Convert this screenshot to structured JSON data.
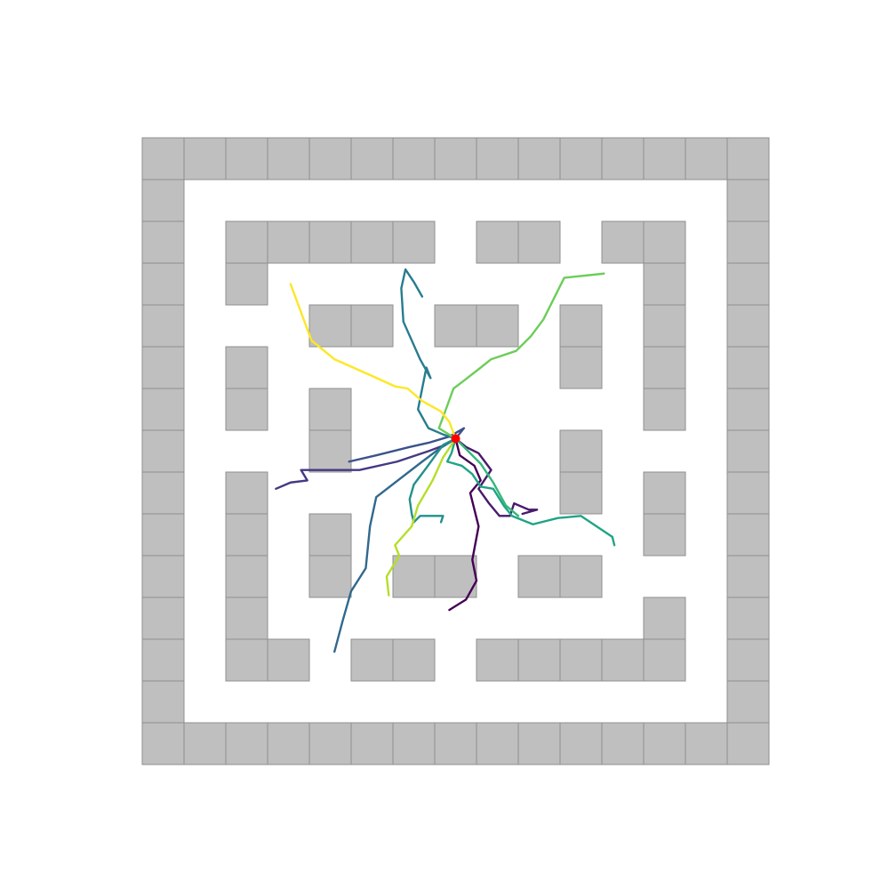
{
  "maze": {
    "cols": 15,
    "rows": 15,
    "wall_color": "#bfbfbf",
    "walls": [
      [
        0,
        0
      ],
      [
        1,
        0
      ],
      [
        2,
        0
      ],
      [
        3,
        0
      ],
      [
        4,
        0
      ],
      [
        5,
        0
      ],
      [
        6,
        0
      ],
      [
        7,
        0
      ],
      [
        8,
        0
      ],
      [
        9,
        0
      ],
      [
        10,
        0
      ],
      [
        11,
        0
      ],
      [
        12,
        0
      ],
      [
        13,
        0
      ],
      [
        14,
        0
      ],
      [
        0,
        14
      ],
      [
        1,
        14
      ],
      [
        2,
        14
      ],
      [
        3,
        14
      ],
      [
        4,
        14
      ],
      [
        5,
        14
      ],
      [
        6,
        14
      ],
      [
        7,
        14
      ],
      [
        8,
        14
      ],
      [
        9,
        14
      ],
      [
        10,
        14
      ],
      [
        11,
        14
      ],
      [
        12,
        14
      ],
      [
        13,
        14
      ],
      [
        14,
        14
      ],
      [
        0,
        1
      ],
      [
        0,
        2
      ],
      [
        0,
        3
      ],
      [
        0,
        4
      ],
      [
        0,
        5
      ],
      [
        0,
        6
      ],
      [
        0,
        7
      ],
      [
        0,
        8
      ],
      [
        0,
        9
      ],
      [
        0,
        10
      ],
      [
        0,
        11
      ],
      [
        0,
        12
      ],
      [
        0,
        13
      ],
      [
        14,
        1
      ],
      [
        14,
        2
      ],
      [
        14,
        3
      ],
      [
        14,
        4
      ],
      [
        14,
        5
      ],
      [
        14,
        6
      ],
      [
        14,
        7
      ],
      [
        14,
        8
      ],
      [
        14,
        9
      ],
      [
        14,
        10
      ],
      [
        14,
        11
      ],
      [
        14,
        12
      ],
      [
        14,
        13
      ],
      [
        2,
        2
      ],
      [
        3,
        2
      ],
      [
        4,
        2
      ],
      [
        5,
        2
      ],
      [
        6,
        2
      ],
      [
        8,
        2
      ],
      [
        9,
        2
      ],
      [
        11,
        2
      ],
      [
        12,
        2
      ],
      [
        2,
        3
      ],
      [
        12,
        3
      ],
      [
        4,
        4
      ],
      [
        5,
        4
      ],
      [
        7,
        4
      ],
      [
        8,
        4
      ],
      [
        10,
        4
      ],
      [
        12,
        4
      ],
      [
        2,
        5
      ],
      [
        10,
        5
      ],
      [
        12,
        5
      ],
      [
        2,
        6
      ],
      [
        4,
        6
      ],
      [
        12,
        6
      ],
      [
        4,
        7
      ],
      [
        10,
        7
      ],
      [
        2,
        8
      ],
      [
        10,
        8
      ],
      [
        12,
        8
      ],
      [
        2,
        9
      ],
      [
        4,
        9
      ],
      [
        12,
        9
      ],
      [
        2,
        10
      ],
      [
        4,
        10
      ],
      [
        6,
        10
      ],
      [
        7,
        10
      ],
      [
        9,
        10
      ],
      [
        10,
        10
      ],
      [
        2,
        11
      ],
      [
        12,
        11
      ],
      [
        2,
        12
      ],
      [
        3,
        12
      ],
      [
        5,
        12
      ],
      [
        6,
        12
      ],
      [
        8,
        12
      ],
      [
        9,
        12
      ],
      [
        10,
        12
      ],
      [
        11,
        12
      ],
      [
        12,
        12
      ]
    ]
  },
  "start": {
    "cell": [
      7.5,
      7.2
    ],
    "color": "#ff0000"
  },
  "trajectories": [
    {
      "color": "#440154",
      "points": [
        [
          7.5,
          7.2
        ],
        [
          7.6,
          7.6
        ],
        [
          7.95,
          7.85
        ],
        [
          8.1,
          8.2
        ],
        [
          7.85,
          8.5
        ],
        [
          8.05,
          9.3
        ],
        [
          7.9,
          10.1
        ],
        [
          8.0,
          10.6
        ],
        [
          7.75,
          11.05
        ],
        [
          7.35,
          11.3
        ]
      ]
    },
    {
      "color": "#481a6c",
      "points": [
        [
          7.5,
          7.2
        ],
        [
          7.75,
          7.4
        ],
        [
          8.05,
          7.55
        ],
        [
          8.35,
          7.95
        ],
        [
          8.05,
          8.4
        ],
        [
          8.3,
          8.75
        ],
        [
          8.55,
          9.05
        ],
        [
          8.8,
          9.05
        ],
        [
          8.9,
          8.75
        ],
        [
          9.25,
          8.9
        ],
        [
          9.45,
          8.9
        ],
        [
          9.1,
          9.0
        ]
      ]
    },
    {
      "color": "#443983",
      "points": [
        [
          7.5,
          7.2
        ],
        [
          7.25,
          7.35
        ],
        [
          6.85,
          7.5
        ],
        [
          6.1,
          7.75
        ],
        [
          5.2,
          7.95
        ],
        [
          3.8,
          7.95
        ],
        [
          3.95,
          8.2
        ],
        [
          3.55,
          8.25
        ],
        [
          3.2,
          8.4
        ]
      ]
    },
    {
      "color": "#3b528b",
      "points": [
        [
          7.5,
          7.2
        ],
        [
          7.7,
          6.95
        ],
        [
          7.35,
          7.15
        ],
        [
          6.85,
          7.3
        ],
        [
          6.4,
          7.4
        ],
        [
          5.6,
          7.6
        ],
        [
          4.95,
          7.75
        ]
      ]
    },
    {
      "color": "#31688e",
      "points": [
        [
          7.5,
          7.2
        ],
        [
          7.1,
          7.45
        ],
        [
          6.7,
          7.75
        ],
        [
          5.6,
          8.6
        ],
        [
          5.45,
          9.3
        ],
        [
          5.35,
          10.3
        ],
        [
          5.0,
          10.85
        ],
        [
          4.8,
          11.55
        ],
        [
          4.6,
          12.3
        ]
      ]
    },
    {
      "color": "#287c8e",
      "points": [
        [
          7.5,
          7.2
        ],
        [
          7.2,
          7.1
        ],
        [
          6.85,
          6.95
        ],
        [
          6.6,
          6.5
        ],
        [
          6.7,
          6.0
        ],
        [
          6.8,
          5.5
        ],
        [
          6.9,
          5.75
        ],
        [
          6.65,
          5.3
        ],
        [
          6.45,
          4.85
        ],
        [
          6.25,
          4.4
        ],
        [
          6.2,
          3.6
        ],
        [
          6.3,
          3.15
        ],
        [
          6.5,
          3.45
        ],
        [
          6.7,
          3.8
        ]
      ]
    },
    {
      "color": "#21918c",
      "points": [
        [
          7.5,
          7.2
        ],
        [
          7.2,
          7.35
        ],
        [
          6.8,
          7.9
        ],
        [
          6.5,
          8.3
        ],
        [
          6.4,
          8.65
        ],
        [
          6.45,
          9.0
        ],
        [
          6.5,
          9.2
        ],
        [
          6.65,
          9.05
        ],
        [
          6.95,
          9.05
        ],
        [
          7.2,
          9.05
        ],
        [
          7.15,
          9.2
        ]
      ]
    },
    {
      "color": "#20a386",
      "points": [
        [
          7.5,
          7.2
        ],
        [
          7.4,
          7.55
        ],
        [
          7.3,
          7.75
        ],
        [
          7.65,
          7.85
        ],
        [
          7.9,
          8.05
        ],
        [
          8.1,
          8.35
        ],
        [
          8.4,
          8.4
        ],
        [
          8.65,
          8.8
        ],
        [
          8.85,
          9.05
        ],
        [
          9.35,
          9.25
        ],
        [
          9.95,
          9.1
        ],
        [
          10.5,
          9.05
        ],
        [
          11.25,
          9.55
        ],
        [
          11.3,
          9.75
        ]
      ]
    },
    {
      "color": "#35b779",
      "points": [
        [
          7.5,
          7.2
        ],
        [
          7.75,
          7.45
        ],
        [
          8.1,
          7.8
        ],
        [
          8.4,
          8.25
        ],
        [
          8.7,
          8.8
        ],
        [
          9.0,
          9.05
        ]
      ]
    },
    {
      "color": "#6ccd5a",
      "points": [
        [
          7.5,
          7.2
        ],
        [
          7.1,
          6.95
        ],
        [
          7.25,
          6.55
        ],
        [
          7.45,
          6.0
        ],
        [
          7.65,
          5.85
        ],
        [
          8.1,
          5.5
        ],
        [
          8.35,
          5.3
        ],
        [
          8.95,
          5.1
        ],
        [
          9.3,
          4.75
        ],
        [
          9.6,
          4.35
        ],
        [
          10.1,
          3.35
        ],
        [
          11.05,
          3.25
        ]
      ]
    },
    {
      "color": "#b5de2b",
      "points": [
        [
          7.5,
          7.2
        ],
        [
          7.2,
          7.65
        ],
        [
          6.95,
          8.2
        ],
        [
          6.6,
          8.8
        ],
        [
          6.45,
          9.3
        ],
        [
          6.05,
          9.75
        ],
        [
          6.15,
          10.0
        ],
        [
          5.85,
          10.5
        ],
        [
          5.9,
          10.95
        ]
      ]
    },
    {
      "color": "#fde725",
      "points": [
        [
          7.5,
          7.2
        ],
        [
          7.35,
          6.8
        ],
        [
          7.15,
          6.55
        ],
        [
          6.7,
          6.3
        ],
        [
          6.35,
          6.0
        ],
        [
          6.05,
          5.95
        ],
        [
          5.5,
          5.7
        ],
        [
          4.6,
          5.3
        ],
        [
          4.05,
          4.85
        ],
        [
          3.55,
          3.5
        ]
      ]
    }
  ]
}
